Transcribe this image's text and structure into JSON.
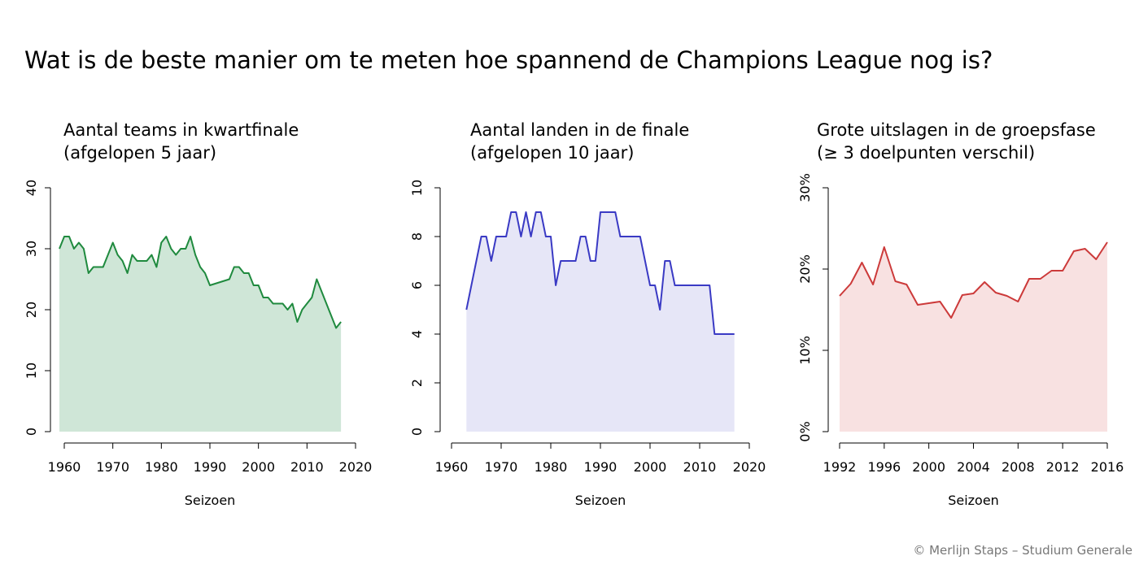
{
  "page": {
    "title": "Wat is de beste manier om te meten hoe spannend de Champions League nog is?",
    "credit": "© Merlijn Staps – Studium Generale"
  },
  "chart_data": [
    {
      "type": "area",
      "title": [
        "Aantal teams in kwartfinale",
        "(afgelopen 5 jaar)"
      ],
      "xlabel": "Seizoen",
      "ylabel": "",
      "xlim": [
        1960,
        2020
      ],
      "ylim": [
        0,
        40
      ],
      "xticks": [
        1960,
        1970,
        1980,
        1990,
        2000,
        2010,
        2020
      ],
      "yticks": [
        0,
        10,
        20,
        30,
        40
      ],
      "ytick_labels": [
        "0",
        "10",
        "20",
        "30",
        "40"
      ],
      "grid": false,
      "line_color": "#1f8a3e",
      "fill_color": "#cfe6d7",
      "x": [
        1959,
        1960,
        1961,
        1962,
        1963,
        1964,
        1965,
        1966,
        1967,
        1968,
        1969,
        1970,
        1971,
        1972,
        1973,
        1974,
        1975,
        1976,
        1977,
        1978,
        1979,
        1980,
        1981,
        1982,
        1983,
        1984,
        1985,
        1986,
        1987,
        1988,
        1989,
        1990,
        1994,
        1995,
        1996,
        1997,
        1998,
        1999,
        2000,
        2001,
        2002,
        2003,
        2004,
        2005,
        2006,
        2007,
        2008,
        2009,
        2010,
        2011,
        2012,
        2016,
        2017
      ],
      "y": [
        30,
        32,
        32,
        30,
        31,
        30,
        26,
        27,
        27,
        27,
        29,
        31,
        29,
        28,
        26,
        29,
        28,
        28,
        28,
        29,
        27,
        31,
        32,
        30,
        29,
        30,
        30,
        32,
        29,
        27,
        26,
        24,
        25,
        27,
        27,
        26,
        26,
        24,
        24,
        22,
        22,
        21,
        21,
        21,
        20,
        21,
        18,
        20,
        21,
        22,
        25,
        17,
        18
      ]
    },
    {
      "type": "area",
      "title": [
        "Aantal landen in de finale",
        "(afgelopen 10 jaar)"
      ],
      "xlabel": "Seizoen",
      "ylabel": "",
      "xlim": [
        1960,
        2020
      ],
      "ylim": [
        0,
        10
      ],
      "xticks": [
        1960,
        1970,
        1980,
        1990,
        2000,
        2010,
        2020
      ],
      "yticks": [
        0,
        2,
        4,
        6,
        8,
        10
      ],
      "ytick_labels": [
        "0",
        "2",
        "4",
        "6",
        "8",
        "10"
      ],
      "grid": false,
      "line_color": "#3a3ac4",
      "fill_color": "#e6e6f7",
      "x": [
        1963,
        1966,
        1967,
        1968,
        1969,
        1971,
        1972,
        1973,
        1974,
        1975,
        1976,
        1977,
        1978,
        1979,
        1980,
        1981,
        1982,
        1985,
        1986,
        1987,
        1988,
        1989,
        1990,
        1993,
        1994,
        1998,
        2000,
        2001,
        2002,
        2003,
        2004,
        2005,
        2012,
        2013,
        2017
      ],
      "y": [
        5,
        8,
        8,
        7,
        8,
        8,
        9,
        9,
        8,
        9,
        8,
        9,
        9,
        8,
        8,
        6,
        7,
        7,
        8,
        8,
        7,
        7,
        9,
        9,
        8,
        8,
        6,
        6,
        5,
        7,
        7,
        6,
        6,
        4,
        4
      ]
    },
    {
      "type": "area",
      "title": [
        "Grote uitslagen in de groepsfase",
        "(≥ 3 doelpunten verschil)"
      ],
      "xlabel": "Seizoen",
      "ylabel": "",
      "xlim": [
        1992,
        2016
      ],
      "ylim": [
        0,
        30
      ],
      "xticks": [
        1992,
        1996,
        2000,
        2004,
        2008,
        2012,
        2016
      ],
      "yticks": [
        0,
        10,
        20,
        30
      ],
      "ytick_labels": [
        "0%",
        "10%",
        "20%",
        "30%"
      ],
      "grid": false,
      "line_color": "#cc3a3a",
      "fill_color": "#f8e1e1",
      "x": [
        1992,
        1993,
        1994,
        1995,
        1996,
        1997,
        1998,
        1999,
        2000,
        2001,
        2002,
        2003,
        2004,
        2005,
        2006,
        2007,
        2008,
        2009,
        2010,
        2011,
        2012,
        2013,
        2014,
        2015,
        2016
      ],
      "y": [
        16.7,
        18.2,
        20.8,
        18.1,
        22.7,
        18.5,
        18.1,
        15.6,
        15.8,
        16,
        14,
        16.8,
        17,
        18.4,
        17.1,
        16.7,
        16,
        18.8,
        18.8,
        19.8,
        19.8,
        22.2,
        22.5,
        21.2,
        23.3
      ]
    }
  ]
}
